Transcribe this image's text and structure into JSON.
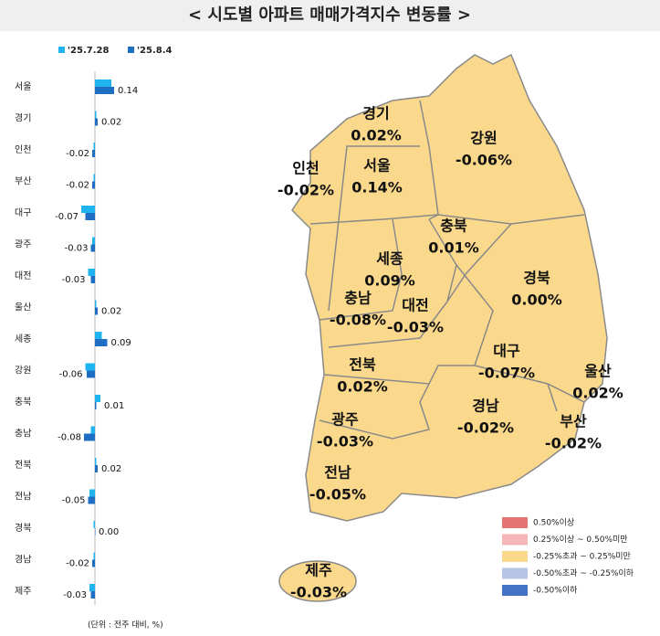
{
  "chart_data": {
    "type": "bar",
    "orientation": "horizontal",
    "title": "< 시도별 아파트 매매가격지수 변동률 >",
    "note": "(단위 : 전주 대비, %)",
    "categories": [
      "서울",
      "경기",
      "인천",
      "부산",
      "대구",
      "광주",
      "대전",
      "울산",
      "세종",
      "강원",
      "충북",
      "충남",
      "전북",
      "전남",
      "경북",
      "경남",
      "제주"
    ],
    "series": [
      {
        "name": "'25.7.28",
        "color": "#1fb4f0",
        "values": [
          0.12,
          0.01,
          -0.01,
          -0.01,
          -0.1,
          -0.02,
          -0.05,
          0.01,
          0.05,
          -0.07,
          0.04,
          -0.03,
          0.01,
          -0.04,
          -0.01,
          -0.01,
          -0.04
        ]
      },
      {
        "name": "'25.8.4",
        "color": "#1e6fc4",
        "values": [
          0.14,
          0.02,
          -0.02,
          -0.02,
          -0.07,
          -0.03,
          -0.03,
          0.02,
          0.09,
          -0.06,
          0.01,
          -0.08,
          0.02,
          -0.05,
          0,
          -0.02,
          -0.03
        ],
        "value_labels": [
          "0.14",
          "0.02",
          "-0.02",
          "-0.02",
          "-0.07",
          "-0.03",
          "-0.03",
          "0.02",
          "0.09",
          "-0.06",
          "0.01",
          "-0.08",
          "0.02",
          "-0.05",
          "0.00",
          "-0.02",
          "-0.03"
        ]
      }
    ],
    "xlim": [
      -0.2,
      0.2
    ],
    "legend": "top"
  },
  "map": {
    "regions": [
      {
        "name": "경기",
        "label": "0.02%"
      },
      {
        "name": "강원",
        "label": "-0.06%"
      },
      {
        "name": "인천",
        "label": "-0.02%"
      },
      {
        "name": "서울",
        "label": "0.14%"
      },
      {
        "name": "충북",
        "label": "0.01%"
      },
      {
        "name": "세종",
        "label": "0.09%"
      },
      {
        "name": "경북",
        "label": "0.00%"
      },
      {
        "name": "충남",
        "label": "-0.08%"
      },
      {
        "name": "대전",
        "label": "-0.03%"
      },
      {
        "name": "대구",
        "label": "-0.07%"
      },
      {
        "name": "전북",
        "label": "0.02%"
      },
      {
        "name": "울산",
        "label": "0.02%"
      },
      {
        "name": "경남",
        "label": "-0.02%"
      },
      {
        "name": "부산",
        "label": "-0.02%"
      },
      {
        "name": "광주",
        "label": "-0.03%"
      },
      {
        "name": "전남",
        "label": "-0.05%"
      },
      {
        "name": "제주",
        "label": "-0.03%"
      }
    ],
    "legend": [
      {
        "label": "0.50%이상",
        "color": "#e57373"
      },
      {
        "label": "0.25%이상 ~ 0.50%미만",
        "color": "#f4b6b6"
      },
      {
        "label": "-0.25%초과 ~ 0.25%미만",
        "color": "#fbd98c"
      },
      {
        "label": "-0.50%초과 ~ -0.25%이하",
        "color": "#b7c6e6"
      },
      {
        "label": "-0.50%이하",
        "color": "#4472c4"
      }
    ]
  }
}
